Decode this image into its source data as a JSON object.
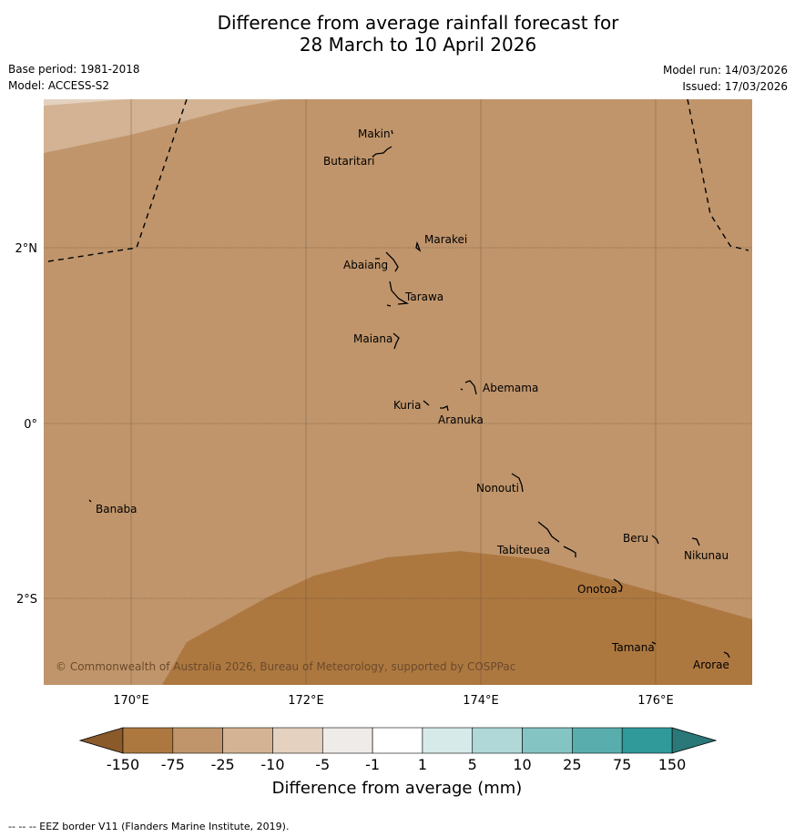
{
  "title": {
    "line1": "Difference from average rainfall forecast for",
    "line2": "28 March to 10 April 2026"
  },
  "meta": {
    "base_period": "Base period: 1981-2018",
    "model": "Model: ACCESS-S2",
    "model_run": "Model run: 14/03/2026",
    "issued": "Issued: 17/03/2026"
  },
  "map": {
    "lon_ticks": [
      "170°E",
      "172°E",
      "174°E",
      "176°E"
    ],
    "lat_ticks": [
      "2°N",
      "0°",
      "2°S"
    ],
    "islands": [
      "Makin",
      "Butaritari",
      "Marakei",
      "Abaiang",
      "Tarawa",
      "Maiana",
      "Abemama",
      "Kuria",
      "Aranuka",
      "Nonouti",
      "Banaba",
      "Tabiteuea",
      "Beru",
      "Nikunau",
      "Onotoa",
      "Tamana",
      "Arorae"
    ],
    "copyright": "© Commonwealth of Australia 2026, Bureau of Meteorology, supported by COSPPac",
    "category_colors": {
      "-150_-75": "#ad7840",
      "-75_-25": "#c0956b",
      "-25_-10": "#d3b393",
      "-10_-5": "#e4d1bf"
    }
  },
  "colorbar": {
    "labels": [
      "-150",
      "-75",
      "-25",
      "-10",
      "-5",
      "-1",
      "1",
      "5",
      "10",
      "25",
      "75",
      "150"
    ],
    "colors": [
      "#ad7840",
      "#c0956b",
      "#d3b393",
      "#e4d1bf",
      "#efebe8",
      "#ffffff",
      "#d6eaea",
      "#b0d8d8",
      "#84c4c2",
      "#5aadad",
      "#30999a"
    ],
    "under_color": "#8b5a2b",
    "over_color": "#2a7878",
    "title": "Difference from average (mm)"
  },
  "footer": "--  --  -- EEZ border V11 (Flanders Marine Institute, 2019)."
}
